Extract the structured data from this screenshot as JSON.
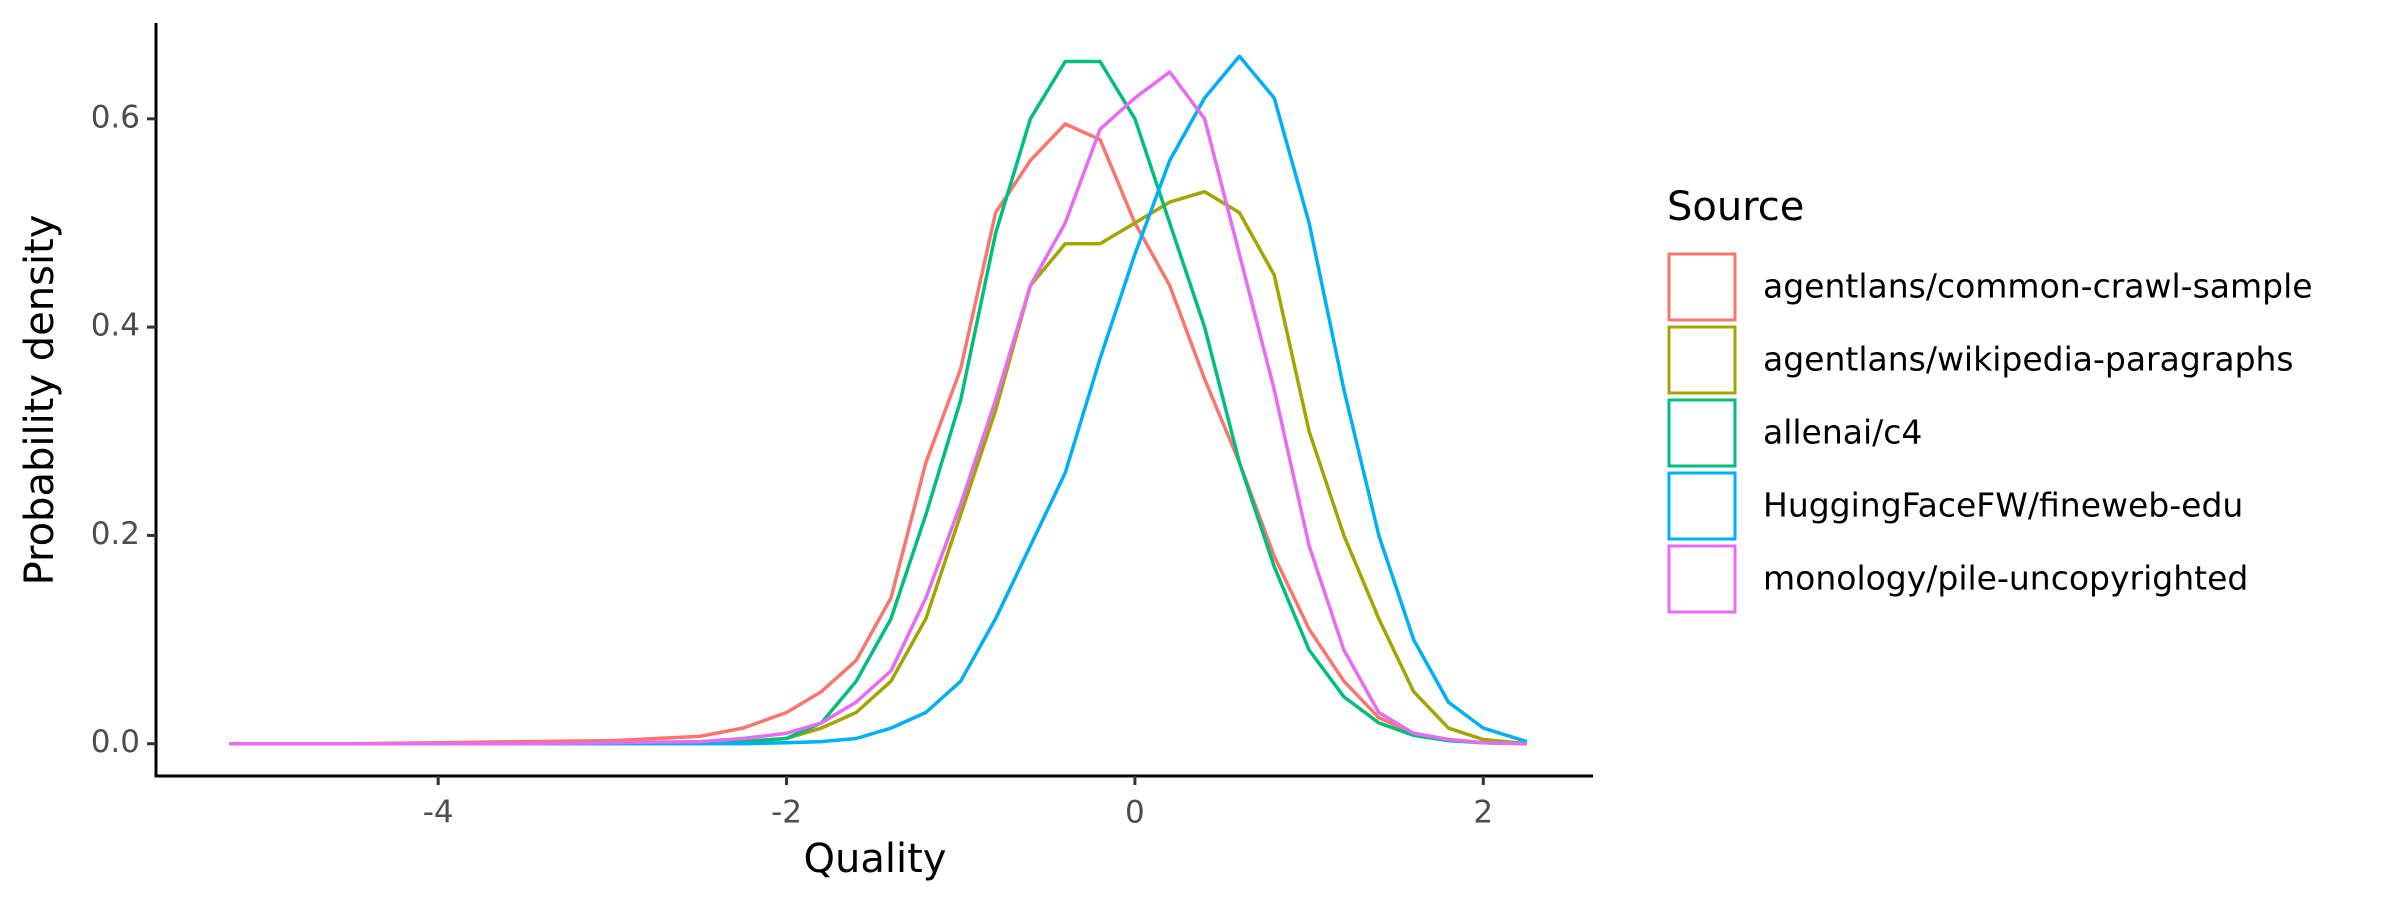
{
  "chart_data": {
    "type": "line",
    "x_label": "Quality",
    "y_label": "Probability density",
    "legend_title": "Source",
    "x": [
      -5.2,
      -4.5,
      -4,
      -3.5,
      -3,
      -2.5,
      -2.25,
      -2,
      -1.8,
      -1.6,
      -1.4,
      -1.2,
      -1.0,
      -0.8,
      -0.6,
      -0.4,
      -0.2,
      0,
      0.2,
      0.4,
      0.6,
      0.8,
      1.0,
      1.2,
      1.4,
      1.6,
      1.8,
      2.0,
      2.25
    ],
    "series": [
      {
        "name": "agentlans/common-crawl-sample",
        "color": "#F8766D",
        "values": [
          0,
          0,
          0.001,
          0.002,
          0.003,
          0.007,
          0.015,
          0.03,
          0.05,
          0.08,
          0.14,
          0.27,
          0.36,
          0.51,
          0.56,
          0.595,
          0.58,
          0.5,
          0.44,
          0.35,
          0.27,
          0.18,
          0.11,
          0.06,
          0.025,
          0.01,
          0.004,
          0.001,
          0
        ]
      },
      {
        "name": "agentlans/wikipedia-paragraphs",
        "color": "#A3A500",
        "values": [
          0,
          0,
          0,
          0,
          0,
          0.001,
          0.002,
          0.005,
          0.015,
          0.03,
          0.06,
          0.12,
          0.22,
          0.32,
          0.44,
          0.48,
          0.48,
          0.5,
          0.52,
          0.53,
          0.51,
          0.45,
          0.3,
          0.2,
          0.12,
          0.05,
          0.015,
          0.004,
          0
        ]
      },
      {
        "name": "allenai/c4",
        "color": "#00BF7D",
        "values": [
          0,
          0,
          0,
          0,
          0,
          0.001,
          0.002,
          0.005,
          0.02,
          0.06,
          0.12,
          0.22,
          0.33,
          0.49,
          0.6,
          0.655,
          0.655,
          0.6,
          0.5,
          0.4,
          0.27,
          0.17,
          0.09,
          0.045,
          0.02,
          0.008,
          0.003,
          0.001,
          0
        ]
      },
      {
        "name": "HuggingFaceFW/fineweb-edu",
        "color": "#00B0F6",
        "values": [
          0,
          0,
          0,
          0,
          0,
          0,
          0,
          0.001,
          0.002,
          0.005,
          0.015,
          0.03,
          0.06,
          0.12,
          0.19,
          0.26,
          0.37,
          0.47,
          0.56,
          0.62,
          0.66,
          0.62,
          0.5,
          0.34,
          0.2,
          0.1,
          0.04,
          0.015,
          0.002
        ]
      },
      {
        "name": "monology/pile-uncopyrighted",
        "color": "#E76BF3",
        "values": [
          0,
          0,
          0,
          0,
          0.001,
          0.002,
          0.005,
          0.01,
          0.02,
          0.04,
          0.07,
          0.14,
          0.23,
          0.33,
          0.44,
          0.5,
          0.59,
          0.62,
          0.645,
          0.6,
          0.47,
          0.34,
          0.19,
          0.09,
          0.03,
          0.01,
          0.004,
          0.001,
          0
        ]
      }
    ],
    "xlim": [
      -5.62,
      2.63
    ],
    "xticks": [
      -4,
      -2,
      0,
      2
    ],
    "ylim": [
      -0.031,
      0.692
    ],
    "yticks": [
      {
        "value": 0,
        "label": "0.0"
      },
      {
        "value": 0.2,
        "label": "0.2"
      },
      {
        "value": 0.4,
        "label": "0.4"
      },
      {
        "value": 0.6,
        "label": "0.6"
      }
    ],
    "legend_position": "right"
  }
}
